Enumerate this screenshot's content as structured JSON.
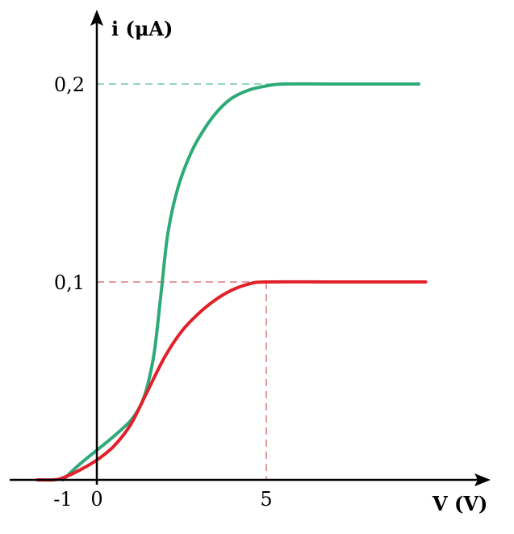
{
  "chart_data": {
    "type": "line",
    "title": "",
    "xlabel": "V (V)",
    "ylabel": "i (μA)",
    "xlim": [
      -1.75,
      11.7
    ],
    "ylim": [
      0,
      0.2
    ],
    "grid": false,
    "x_ticks": [
      {
        "value": -1,
        "label": "-1"
      },
      {
        "value": 0,
        "label": "0"
      },
      {
        "value": 5,
        "label": "5"
      }
    ],
    "y_ticks": [
      {
        "value": 0.1,
        "label": "0,1"
      },
      {
        "value": 0.2,
        "label": "0,2"
      }
    ],
    "series": [
      {
        "color": "#2eaa78",
        "x": [
          -1.0,
          -0.5,
          0.0,
          0.5,
          1.0,
          1.3,
          1.5,
          1.7,
          1.9,
          2.1,
          2.4,
          2.8,
          3.2,
          3.6,
          4.0,
          4.5,
          5.0,
          5.5,
          7.0,
          9.5
        ],
        "y": [
          0.0,
          0.008,
          0.015,
          0.022,
          0.03,
          0.038,
          0.048,
          0.065,
          0.095,
          0.125,
          0.148,
          0.166,
          0.178,
          0.187,
          0.193,
          0.197,
          0.199,
          0.2,
          0.2,
          0.2
        ]
      },
      {
        "color": "#e2202a",
        "x": [
          -1.75,
          -1.3,
          -1.0,
          -0.5,
          0.0,
          0.5,
          1.0,
          1.5,
          2.0,
          2.5,
          3.0,
          3.5,
          4.0,
          4.5,
          5.0,
          7.0,
          9.7
        ],
        "y": [
          0.0,
          0.0,
          0.001,
          0.005,
          0.01,
          0.017,
          0.028,
          0.045,
          0.062,
          0.075,
          0.084,
          0.091,
          0.096,
          0.099,
          0.1,
          0.1,
          0.1
        ]
      }
    ],
    "reference_lines": [
      {
        "color": "#2eaa78",
        "from": [
          0,
          0.2
        ],
        "to": [
          5.5,
          0.2
        ]
      },
      {
        "color": "#c43a3a",
        "from": [
          0,
          0.1
        ],
        "to": [
          5.0,
          0.1
        ]
      },
      {
        "color": "#c43a3a",
        "from": [
          5.0,
          0.1
        ],
        "to": [
          5.0,
          0.0
        ]
      }
    ]
  }
}
